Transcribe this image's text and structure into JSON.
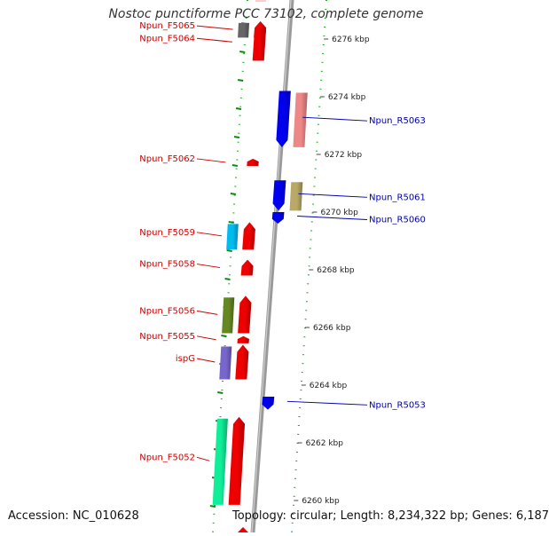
{
  "map": {
    "title": "Nostoc punctiforme PCC 73102, complete genome",
    "accession_text": "Accession: NC_010628",
    "summary_text": "Topology: circular; Length: 8,234,322 bp; Genes: 6,187"
  },
  "ruler": {
    "unit": "kbp",
    "ticks": [
      {
        "kbp": 6276,
        "label": "6276 kbp"
      },
      {
        "kbp": 6274,
        "label": "6274 kbp"
      },
      {
        "kbp": 6272,
        "label": "6272 kbp"
      },
      {
        "kbp": 6270,
        "label": "6270 kbp"
      },
      {
        "kbp": 6268,
        "label": "6268 kbp"
      },
      {
        "kbp": 6266,
        "label": "6266 kbp"
      },
      {
        "kbp": 6264,
        "label": "6264 kbp"
      },
      {
        "kbp": 6262,
        "label": "6262 kbp"
      },
      {
        "kbp": 6260,
        "label": "6260 kbp"
      }
    ]
  },
  "genes": [
    {
      "label": "Npun_F5065",
      "strand": "forward",
      "start_kbp": 6276.05,
      "end_kbp": 6276.62,
      "cog_color": "#666666",
      "label_color": "#cc0000"
    },
    {
      "label": "Npun_F5064",
      "strand": "forward",
      "start_kbp": 6275.25,
      "end_kbp": 6276.55,
      "cog_color": "#ee0000",
      "label_color": "#cc0000"
    },
    {
      "label": "Npun_R5063",
      "strand": "reverse",
      "start_kbp": 6272.25,
      "end_kbp": 6274.2,
      "cog_color": "#0000ee",
      "label_color": "#0000aa"
    },
    {
      "label": "Npun_F5062",
      "strand": "forward",
      "start_kbp": 6271.6,
      "end_kbp": 6271.85,
      "cog_color": "#ee0000",
      "label_color": "#cc0000"
    },
    {
      "label": "Npun_R5061",
      "strand": "reverse",
      "start_kbp": 6270.05,
      "end_kbp": 6271.1,
      "cog_color": "#0000ee",
      "label_color": "#0000aa"
    },
    {
      "label": "Npun_R5060",
      "strand": "reverse",
      "start_kbp": 6269.6,
      "end_kbp": 6270.0,
      "cog_color": "#0000ee",
      "label_color": "#0000aa"
    },
    {
      "label": "Npun_F5059",
      "strand": "forward",
      "start_kbp": 6268.7,
      "end_kbp": 6269.65,
      "cog_color": "#00bbee",
      "label_color": "#cc0000"
    },
    {
      "label": "Npun_F5058",
      "strand": "forward",
      "start_kbp": 6267.8,
      "end_kbp": 6268.35,
      "cog_color": "#ee0000",
      "label_color": "#cc0000"
    },
    {
      "label": "Npun_F5056",
      "strand": "forward",
      "start_kbp": 6265.8,
      "end_kbp": 6267.1,
      "cog_color": "#668822",
      "label_color": "#cc0000"
    },
    {
      "label": "Npun_F5055",
      "strand": "forward",
      "start_kbp": 6265.45,
      "end_kbp": 6265.7,
      "cog_color": "#ee0000",
      "label_color": "#cc0000"
    },
    {
      "label": "ispG",
      "strand": "forward",
      "start_kbp": 6264.2,
      "end_kbp": 6265.4,
      "cog_color": "#7766cc",
      "label_color": "#cc0000"
    },
    {
      "label": "Npun_R5053",
      "strand": "reverse",
      "start_kbp": 6263.15,
      "end_kbp": 6263.6,
      "cog_color": "#0000ee",
      "label_color": "#0000aa"
    },
    {
      "label": "Npun_F5052",
      "strand": "forward",
      "start_kbp": 6259.85,
      "end_kbp": 6262.9,
      "cog_color": "#11ee99",
      "label_color": "#cc0000"
    }
  ]
}
